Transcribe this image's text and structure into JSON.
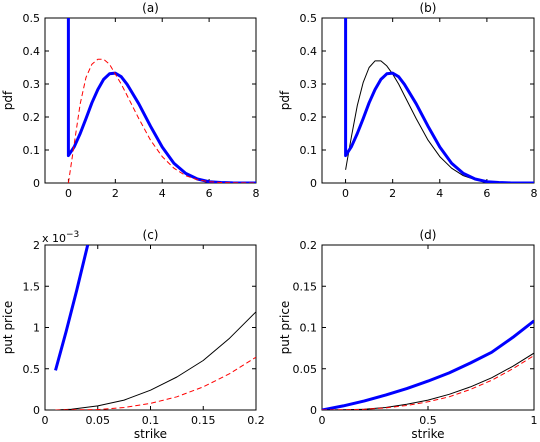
{
  "chart_data": [
    {
      "type": "line",
      "title": "(a)",
      "xlabel": "",
      "ylabel": "pdf",
      "xlim": [
        -1,
        8
      ],
      "ylim": [
        0,
        0.5
      ],
      "xticks": [
        0,
        2,
        4,
        6,
        8
      ],
      "yticks": [
        0,
        0.1,
        0.2,
        0.3,
        0.4,
        0.5
      ],
      "xtick_labels": [
        "0",
        "2",
        "4",
        "6",
        "8"
      ],
      "ytick_labels": [
        "0",
        "0.1",
        "0.2",
        "0.3",
        "0.4",
        "0.5"
      ],
      "series": [
        {
          "color": "#0000ff",
          "style": "solid",
          "weight": "thick",
          "x": [
            0,
            0,
            0.25,
            0.5,
            0.75,
            1.0,
            1.25,
            1.5,
            1.75,
            2.0,
            2.25,
            2.5,
            3.0,
            3.5,
            4.0,
            4.5,
            5.0,
            5.5,
            6.0,
            6.5,
            7.0,
            7.5,
            8.0
          ],
          "y": [
            0.5,
            0.083,
            0.11,
            0.15,
            0.195,
            0.243,
            0.283,
            0.314,
            0.331,
            0.333,
            0.322,
            0.299,
            0.24,
            0.172,
            0.109,
            0.06,
            0.029,
            0.012,
            0.004,
            0.0015,
            0.0004,
            0.0001,
            0.0
          ]
        },
        {
          "color": "#ff0000",
          "style": "dashed",
          "weight": "thin",
          "x": [
            0,
            0.25,
            0.5,
            0.75,
            1.0,
            1.25,
            1.5,
            1.75,
            2.0,
            2.25,
            2.5,
            3.0,
            3.5,
            4.0,
            4.5,
            5.0,
            5.5,
            6.0,
            6.5,
            7.0,
            8.0
          ],
          "y": [
            0.0,
            0.12,
            0.24,
            0.32,
            0.36,
            0.375,
            0.375,
            0.36,
            0.33,
            0.3,
            0.265,
            0.195,
            0.13,
            0.08,
            0.045,
            0.022,
            0.01,
            0.004,
            0.0015,
            0.0005,
            0.0
          ]
        }
      ]
    },
    {
      "type": "line",
      "title": "(b)",
      "xlabel": "",
      "ylabel": "pdf",
      "xlim": [
        -1,
        8
      ],
      "ylim": [
        0,
        0.5
      ],
      "xticks": [
        0,
        2,
        4,
        6,
        8
      ],
      "yticks": [
        0,
        0.1,
        0.2,
        0.3,
        0.4,
        0.5
      ],
      "xtick_labels": [
        "0",
        "2",
        "4",
        "6",
        "8"
      ],
      "ytick_labels": [
        "0",
        "0.1",
        "0.2",
        "0.3",
        "0.4",
        "0.5"
      ],
      "series": [
        {
          "color": "#000000",
          "style": "solid",
          "weight": "thin",
          "x": [
            0,
            0.1,
            0.25,
            0.5,
            0.75,
            1.0,
            1.25,
            1.5,
            1.75,
            2.0,
            2.25,
            2.5,
            3.0,
            3.5,
            4.0,
            4.5,
            5.0,
            5.5,
            6.0,
            6.5,
            7.0,
            8.0
          ],
          "y": [
            0.04,
            0.08,
            0.14,
            0.235,
            0.305,
            0.35,
            0.37,
            0.37,
            0.355,
            0.33,
            0.3,
            0.265,
            0.195,
            0.13,
            0.08,
            0.045,
            0.022,
            0.01,
            0.004,
            0.0015,
            0.0005,
            0.0
          ]
        },
        {
          "color": "#0000ff",
          "style": "solid",
          "weight": "thick",
          "x": [
            0,
            0,
            0.25,
            0.5,
            0.75,
            1.0,
            1.25,
            1.5,
            1.75,
            2.0,
            2.25,
            2.5,
            3.0,
            3.5,
            4.0,
            4.5,
            5.0,
            5.5,
            6.0,
            6.5,
            7.0,
            7.5,
            8.0
          ],
          "y": [
            0.5,
            0.083,
            0.11,
            0.15,
            0.195,
            0.243,
            0.283,
            0.314,
            0.331,
            0.333,
            0.322,
            0.299,
            0.24,
            0.172,
            0.109,
            0.06,
            0.029,
            0.012,
            0.004,
            0.0015,
            0.0004,
            0.0001,
            0.0
          ]
        }
      ]
    },
    {
      "type": "line",
      "title": "(c)",
      "xlabel": "strike",
      "ylabel": "put price",
      "exponent_label": "x 10",
      "exponent_power": "−3",
      "xlim": [
        0,
        0.2
      ],
      "ylim": [
        0,
        2
      ],
      "xticks": [
        0,
        0.05,
        0.1,
        0.15,
        0.2
      ],
      "yticks": [
        0,
        0.5,
        1,
        1.5,
        2
      ],
      "xtick_labels": [
        "0",
        "0.05",
        "0.1",
        "0.15",
        "0.2"
      ],
      "ytick_labels": [
        "0",
        "0.5",
        "1",
        "1.5",
        "2"
      ],
      "series": [
        {
          "color": "#0000ff",
          "style": "solid",
          "weight": "thick",
          "x": [
            0.01,
            0.02,
            0.03,
            0.0405
          ],
          "y": [
            0.48,
            0.95,
            1.45,
            2.0
          ]
        },
        {
          "color": "#000000",
          "style": "solid",
          "weight": "thin",
          "x": [
            0.01,
            0.025,
            0.05,
            0.075,
            0.1,
            0.125,
            0.15,
            0.175,
            0.2
          ],
          "y": [
            0.0,
            0.01,
            0.05,
            0.12,
            0.24,
            0.4,
            0.6,
            0.87,
            1.19
          ]
        },
        {
          "color": "#ff0000",
          "style": "dashed",
          "weight": "thin",
          "x": [
            0.01,
            0.05,
            0.075,
            0.1,
            0.125,
            0.15,
            0.175,
            0.2
          ],
          "y": [
            0.0,
            0.005,
            0.03,
            0.08,
            0.16,
            0.28,
            0.44,
            0.64
          ]
        }
      ]
    },
    {
      "type": "line",
      "title": "(d)",
      "xlabel": "strike",
      "ylabel": "put price",
      "xlim": [
        0,
        1
      ],
      "ylim": [
        0,
        0.2
      ],
      "xticks": [
        0,
        0.5,
        1
      ],
      "yticks": [
        0,
        0.05,
        0.1,
        0.15,
        0.2
      ],
      "xtick_labels": [
        "0",
        "0.5",
        "1"
      ],
      "ytick_labels": [
        "0",
        "0.05",
        "0.1",
        "0.15",
        "0.2"
      ],
      "series": [
        {
          "color": "#0000ff",
          "style": "solid",
          "weight": "thick",
          "x": [
            0,
            0.1,
            0.2,
            0.3,
            0.4,
            0.5,
            0.6,
            0.7,
            0.8,
            0.9,
            1.0
          ],
          "y": [
            0.0,
            0.005,
            0.011,
            0.018,
            0.026,
            0.035,
            0.045,
            0.057,
            0.07,
            0.088,
            0.108
          ]
        },
        {
          "color": "#000000",
          "style": "solid",
          "weight": "thin",
          "x": [
            0,
            0.1,
            0.2,
            0.3,
            0.4,
            0.5,
            0.6,
            0.7,
            0.8,
            0.9,
            1.0
          ],
          "y": [
            0.0,
            0.0002,
            0.001,
            0.003,
            0.007,
            0.012,
            0.019,
            0.028,
            0.039,
            0.053,
            0.069
          ]
        },
        {
          "color": "#ff0000",
          "style": "dashed",
          "weight": "thin",
          "x": [
            0,
            0.1,
            0.2,
            0.3,
            0.4,
            0.5,
            0.6,
            0.7,
            0.8,
            0.9,
            1.0
          ],
          "y": [
            0.0,
            0.0001,
            0.0008,
            0.0025,
            0.0055,
            0.01,
            0.016,
            0.025,
            0.036,
            0.05,
            0.066
          ]
        }
      ]
    }
  ]
}
